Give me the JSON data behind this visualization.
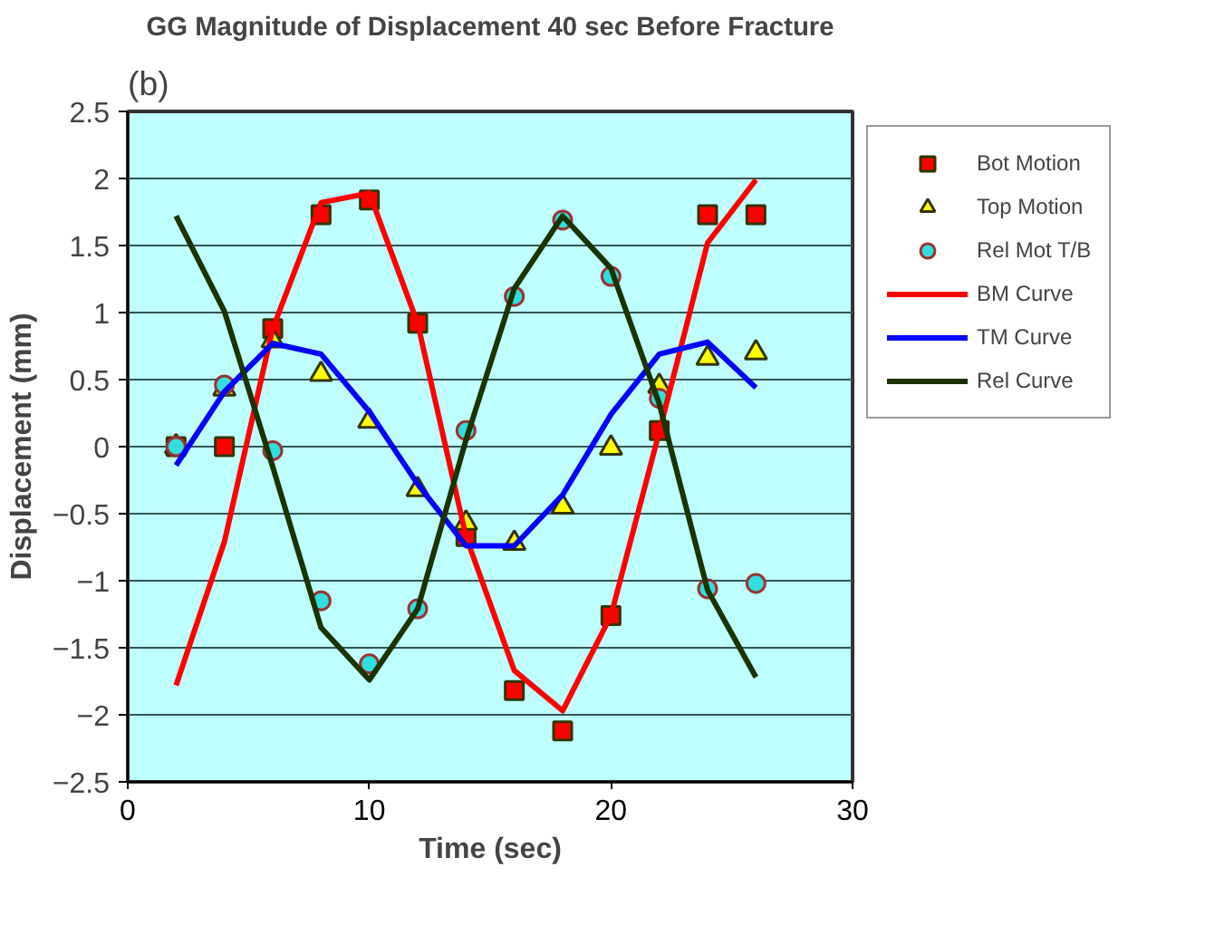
{
  "chart_data": {
    "type": "scatter",
    "title": "GG Magnitude of Displacement 40 sec Before Fracture",
    "xlabel": "Time (sec)",
    "ylabel": "Displacement (mm)",
    "annotations": [
      "(b)"
    ],
    "xlim": [
      0,
      30
    ],
    "xticks": [
      0,
      10,
      20,
      30
    ],
    "ylim": [
      -2.5,
      2.5
    ],
    "yticks": [
      -2.5,
      -2,
      -1.5,
      -1,
      -0.5,
      0,
      0.5,
      1,
      1.5,
      2,
      2.5
    ],
    "grid": "y",
    "legend": "right",
    "series": [
      {
        "name": "Bot Motion",
        "marker": "square",
        "color": "#ff0000",
        "x": [
          2,
          4,
          6,
          8,
          10,
          12,
          14,
          16,
          18,
          20,
          22,
          24,
          26
        ],
        "values": [
          0,
          0,
          0.88,
          1.73,
          1.84,
          0.92,
          -0.67,
          -1.82,
          -2.12,
          -1.26,
          0.12,
          1.73,
          1.73
        ]
      },
      {
        "name": "Top Motion",
        "marker": "triangle",
        "color": "#ffff00",
        "x": [
          2,
          4,
          6,
          8,
          10,
          12,
          14,
          16,
          18,
          20,
          22,
          24,
          26
        ],
        "values": [
          0,
          0.43,
          0.79,
          0.54,
          0.19,
          -0.32,
          -0.57,
          -0.72,
          -0.45,
          -0.01,
          0.45,
          0.66,
          0.7
        ]
      },
      {
        "name": "Rel Mot T/B",
        "marker": "circle",
        "color": "#33dddd",
        "x": [
          2,
          4,
          6,
          8,
          10,
          12,
          14,
          16,
          18,
          20,
          22,
          24,
          26
        ],
        "values": [
          0,
          0.46,
          -0.03,
          -1.15,
          -1.62,
          -1.21,
          0.12,
          1.12,
          1.69,
          1.27,
          0.36,
          -1.06,
          -1.02
        ]
      },
      {
        "name": "BM Curve",
        "type": "line",
        "color": "#ff0000",
        "x": [
          2,
          4,
          6,
          8,
          10,
          12,
          14,
          16,
          18,
          20,
          22,
          24,
          26
        ],
        "values": [
          -1.78,
          -0.71,
          0.88,
          1.82,
          1.89,
          0.92,
          -0.67,
          -1.67,
          -1.97,
          -1.26,
          0.11,
          1.52,
          1.99
        ]
      },
      {
        "name": "TM Curve",
        "type": "line",
        "color": "#0000ff",
        "x": [
          2,
          4,
          6,
          8,
          10,
          12,
          14,
          16,
          18,
          20,
          22,
          24,
          26
        ],
        "values": [
          -0.14,
          0.41,
          0.77,
          0.69,
          0.26,
          -0.28,
          -0.74,
          -0.74,
          -0.36,
          0.24,
          0.69,
          0.78,
          0.44
        ]
      },
      {
        "name": "Rel Curve",
        "type": "line",
        "color": "#1a3300",
        "x": [
          2,
          4,
          6,
          8,
          10,
          12,
          14,
          16,
          18,
          20,
          22,
          24,
          26
        ],
        "values": [
          1.72,
          1.01,
          -0.15,
          -1.35,
          -1.74,
          -1.21,
          0.05,
          1.18,
          1.72,
          1.33,
          0.32,
          -1.07,
          -1.72
        ]
      }
    ]
  }
}
